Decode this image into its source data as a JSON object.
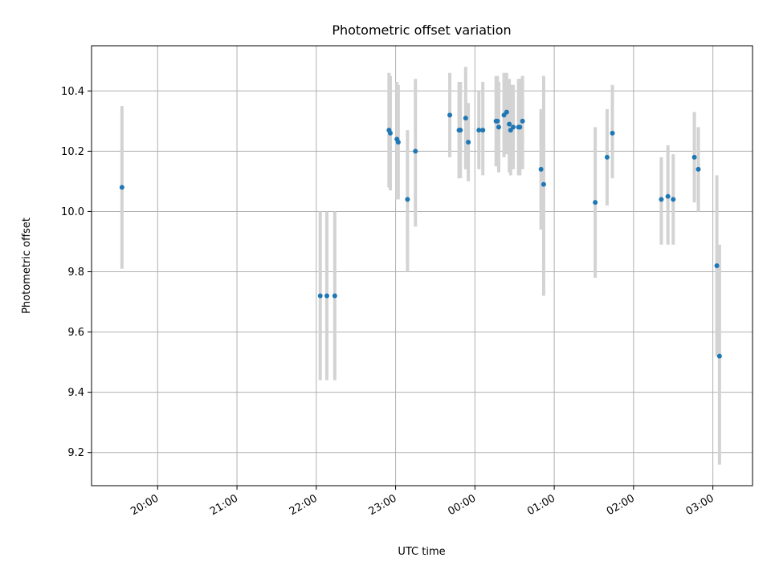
{
  "chart_data": {
    "type": "scatter",
    "title": "Photometric offset variation",
    "xlabel": "UTC time",
    "ylabel": "Photometric offset",
    "x_axis_type": "time",
    "xlim": [
      "19:10",
      "03:30"
    ],
    "ylim": [
      9.09,
      10.55
    ],
    "x_ticks": [
      "20:00",
      "21:00",
      "22:00",
      "23:00",
      "00:00",
      "01:00",
      "02:00",
      "03:00"
    ],
    "y_ticks": [
      9.2,
      9.4,
      9.6,
      9.8,
      10.0,
      10.2,
      10.4
    ],
    "grid": true,
    "point_color": "#1f77b4",
    "errorbar_color": "#d3d3d3",
    "points": [
      {
        "t": "19:33",
        "y": 10.08,
        "ylo": 9.81,
        "yhi": 10.35
      },
      {
        "t": "22:03",
        "y": 9.72,
        "ylo": 9.44,
        "yhi": 10.0
      },
      {
        "t": "22:08",
        "y": 9.72,
        "ylo": 9.44,
        "yhi": 10.0
      },
      {
        "t": "22:14",
        "y": 9.72,
        "ylo": 9.44,
        "yhi": 10.0
      },
      {
        "t": "22:55",
        "y": 10.27,
        "ylo": 10.08,
        "yhi": 10.46
      },
      {
        "t": "22:56",
        "y": 10.26,
        "ylo": 10.07,
        "yhi": 10.45
      },
      {
        "t": "23:01",
        "y": 10.24,
        "ylo": 10.04,
        "yhi": 10.43
      },
      {
        "t": "23:02",
        "y": 10.23,
        "ylo": 10.04,
        "yhi": 10.42
      },
      {
        "t": "23:09",
        "y": 10.04,
        "ylo": 9.8,
        "yhi": 10.27
      },
      {
        "t": "23:15",
        "y": 10.2,
        "ylo": 9.95,
        "yhi": 10.44
      },
      {
        "t": "23:41",
        "y": 10.32,
        "ylo": 10.18,
        "yhi": 10.46
      },
      {
        "t": "23:48",
        "y": 10.27,
        "ylo": 10.11,
        "yhi": 10.43
      },
      {
        "t": "23:49",
        "y": 10.27,
        "ylo": 10.11,
        "yhi": 10.43
      },
      {
        "t": "23:53",
        "y": 10.31,
        "ylo": 10.14,
        "yhi": 10.48
      },
      {
        "t": "23:55",
        "y": 10.23,
        "ylo": 10.1,
        "yhi": 10.36
      },
      {
        "t": "00:03",
        "y": 10.27,
        "ylo": 10.14,
        "yhi": 10.4
      },
      {
        "t": "00:06",
        "y": 10.27,
        "ylo": 10.12,
        "yhi": 10.43
      },
      {
        "t": "00:16",
        "y": 10.3,
        "ylo": 10.15,
        "yhi": 10.45
      },
      {
        "t": "00:17",
        "y": 10.3,
        "ylo": 10.15,
        "yhi": 10.45
      },
      {
        "t": "00:18",
        "y": 10.28,
        "ylo": 10.13,
        "yhi": 10.43
      },
      {
        "t": "00:22",
        "y": 10.32,
        "ylo": 10.18,
        "yhi": 10.46
      },
      {
        "t": "00:24",
        "y": 10.33,
        "ylo": 10.19,
        "yhi": 10.46
      },
      {
        "t": "00:26",
        "y": 10.29,
        "ylo": 10.13,
        "yhi": 10.44
      },
      {
        "t": "00:27",
        "y": 10.27,
        "ylo": 10.12,
        "yhi": 10.42
      },
      {
        "t": "00:29",
        "y": 10.28,
        "ylo": 10.14,
        "yhi": 10.42
      },
      {
        "t": "00:33",
        "y": 10.28,
        "ylo": 10.12,
        "yhi": 10.44
      },
      {
        "t": "00:34",
        "y": 10.28,
        "ylo": 10.12,
        "yhi": 10.44
      },
      {
        "t": "00:36",
        "y": 10.3,
        "ylo": 10.14,
        "yhi": 10.45
      },
      {
        "t": "00:50",
        "y": 10.14,
        "ylo": 9.94,
        "yhi": 10.34
      },
      {
        "t": "00:52",
        "y": 10.09,
        "ylo": 9.72,
        "yhi": 10.45
      },
      {
        "t": "01:31",
        "y": 10.03,
        "ylo": 9.78,
        "yhi": 10.28
      },
      {
        "t": "01:40",
        "y": 10.18,
        "ylo": 10.02,
        "yhi": 10.34
      },
      {
        "t": "01:44",
        "y": 10.26,
        "ylo": 10.11,
        "yhi": 10.42
      },
      {
        "t": "02:21",
        "y": 10.04,
        "ylo": 9.89,
        "yhi": 10.18
      },
      {
        "t": "02:26",
        "y": 10.05,
        "ylo": 9.89,
        "yhi": 10.22
      },
      {
        "t": "02:30",
        "y": 10.04,
        "ylo": 9.89,
        "yhi": 10.19
      },
      {
        "t": "02:46",
        "y": 10.18,
        "ylo": 10.03,
        "yhi": 10.33
      },
      {
        "t": "02:49",
        "y": 10.14,
        "ylo": 10.0,
        "yhi": 10.28
      },
      {
        "t": "03:03",
        "y": 9.82,
        "ylo": 9.52,
        "yhi": 10.12
      },
      {
        "t": "03:05",
        "y": 9.52,
        "ylo": 9.16,
        "yhi": 9.89
      }
    ]
  }
}
